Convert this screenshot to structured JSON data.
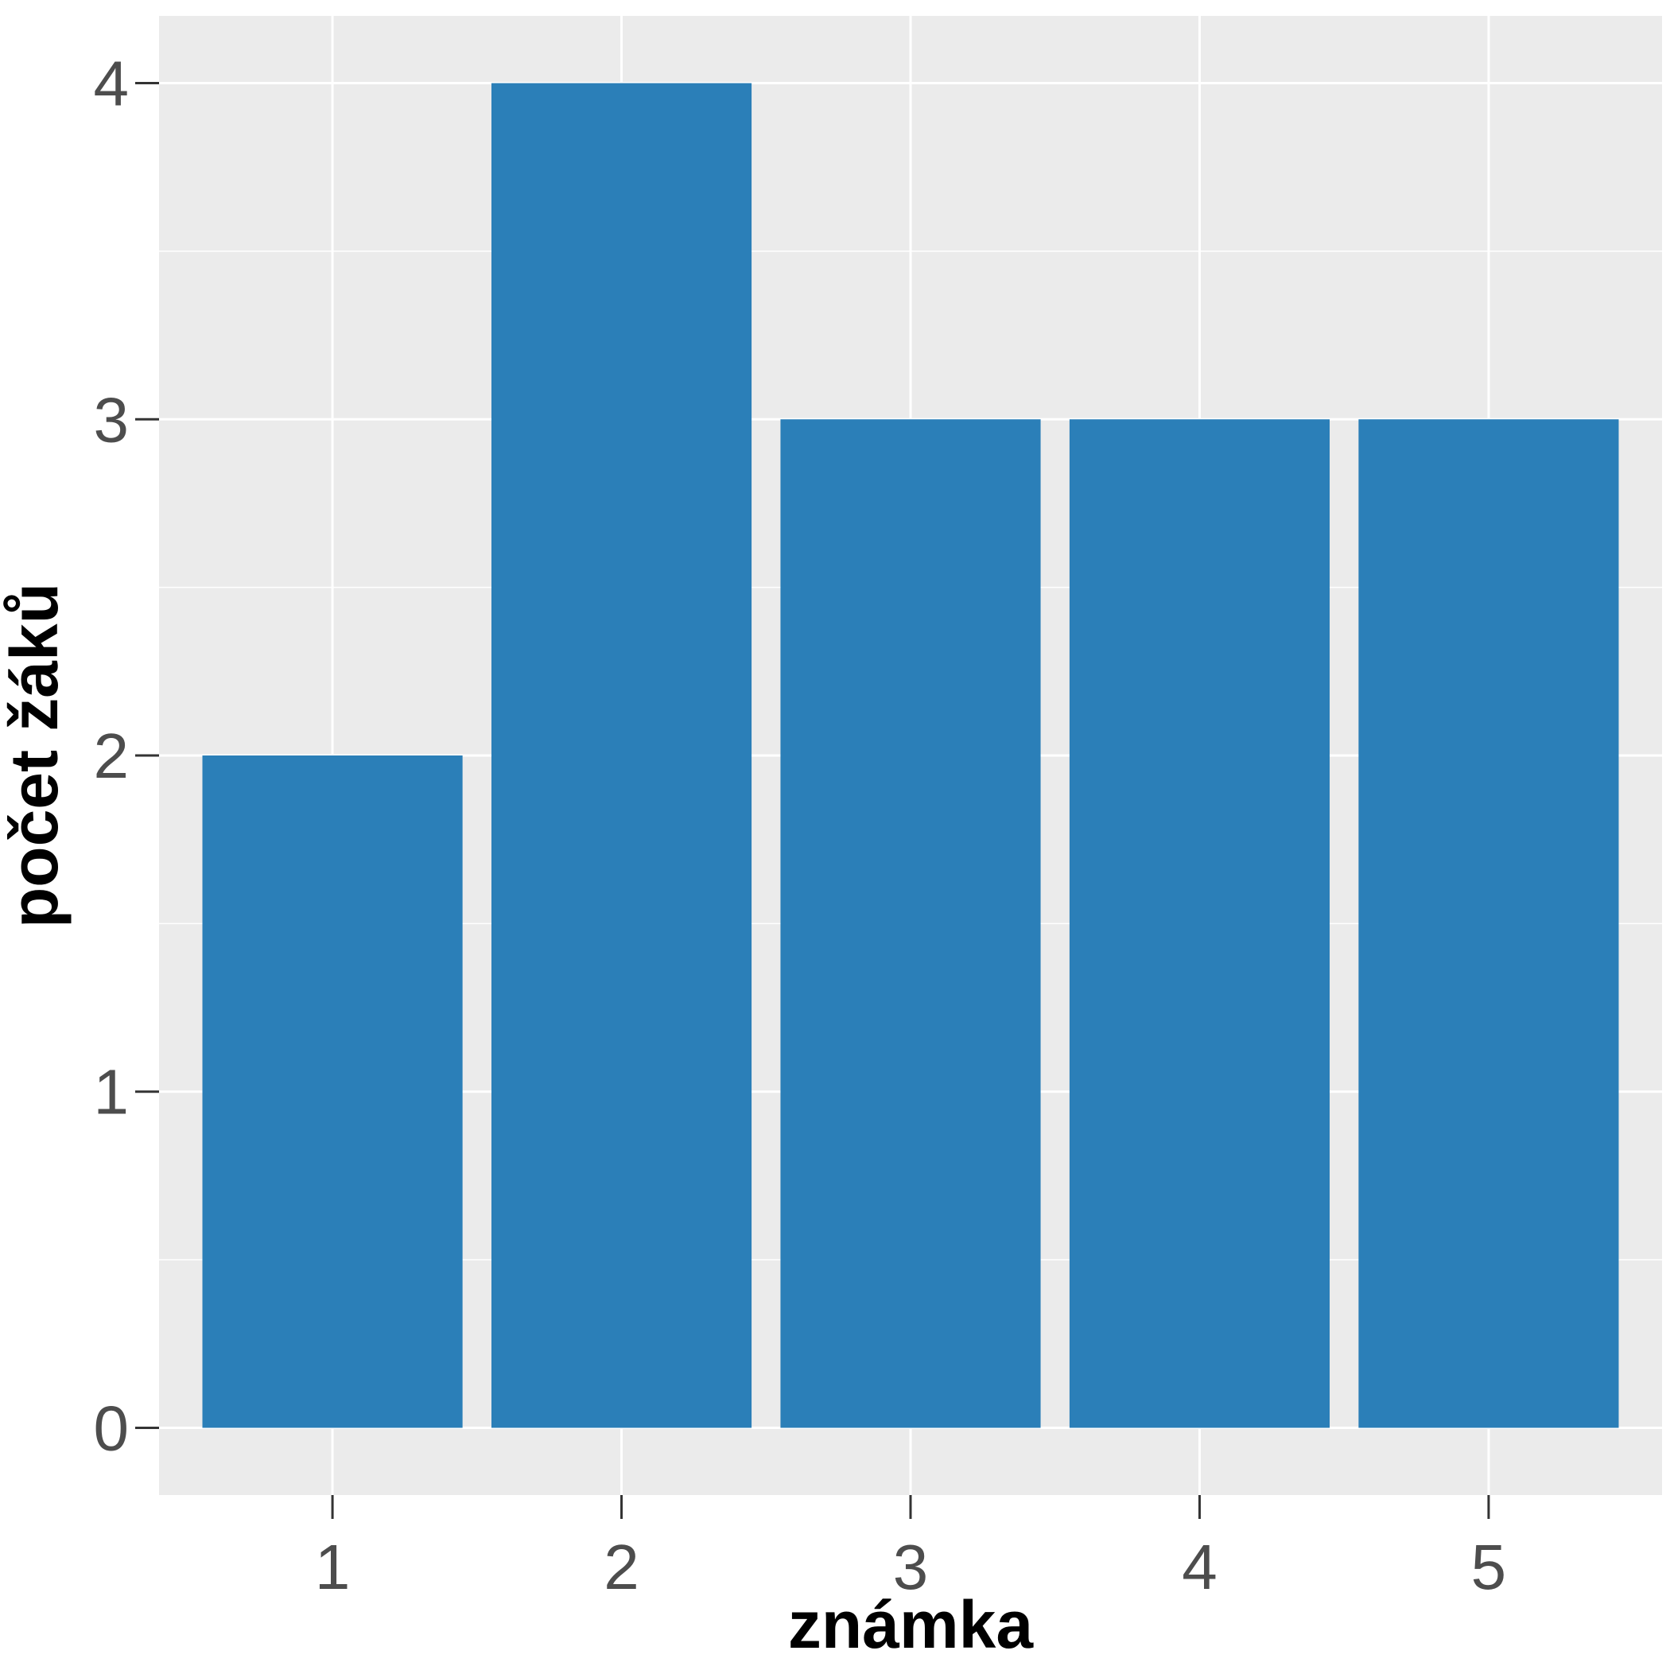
{
  "chart_data": {
    "type": "bar",
    "categories": [
      "1",
      "2",
      "3",
      "4",
      "5"
    ],
    "values": [
      2,
      4,
      3,
      3,
      3
    ],
    "title": "",
    "xlabel": "známka",
    "ylabel": "počet žáků",
    "ylim": [
      -0.2,
      4.2
    ],
    "yticks": [
      "0",
      "1",
      "2",
      "3",
      "4"
    ],
    "grid": true,
    "legend": "none",
    "colors": {
      "bar": "#2b7fb8",
      "panel": "#ebebeb",
      "grid": "#ffffff",
      "tick_label": "#4d4d4d",
      "axis_title": "#000000"
    }
  }
}
